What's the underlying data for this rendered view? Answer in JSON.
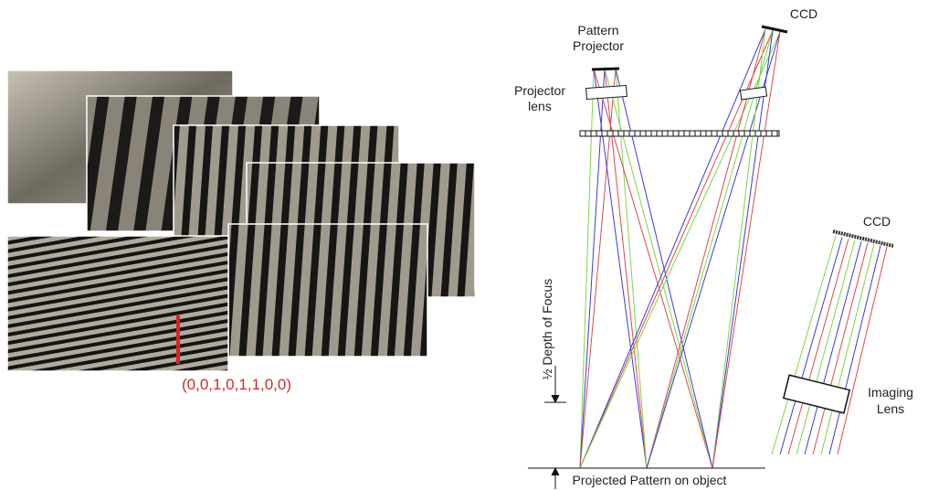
{
  "left_panel": {
    "code_label": "(0,0,1,0,1,1,0,0)"
  },
  "right_panel": {
    "pattern_projector": [
      "Pattern",
      "Projector"
    ],
    "projector_lens": [
      "Projector",
      "lens"
    ],
    "ccd_top": "CCD",
    "ccd_side": "CCD",
    "imaging_lens": [
      "Imaging",
      "Lens"
    ],
    "depth_of_focus": "½ Depth of Focus",
    "projected_pattern": "Projected Pattern on object"
  }
}
